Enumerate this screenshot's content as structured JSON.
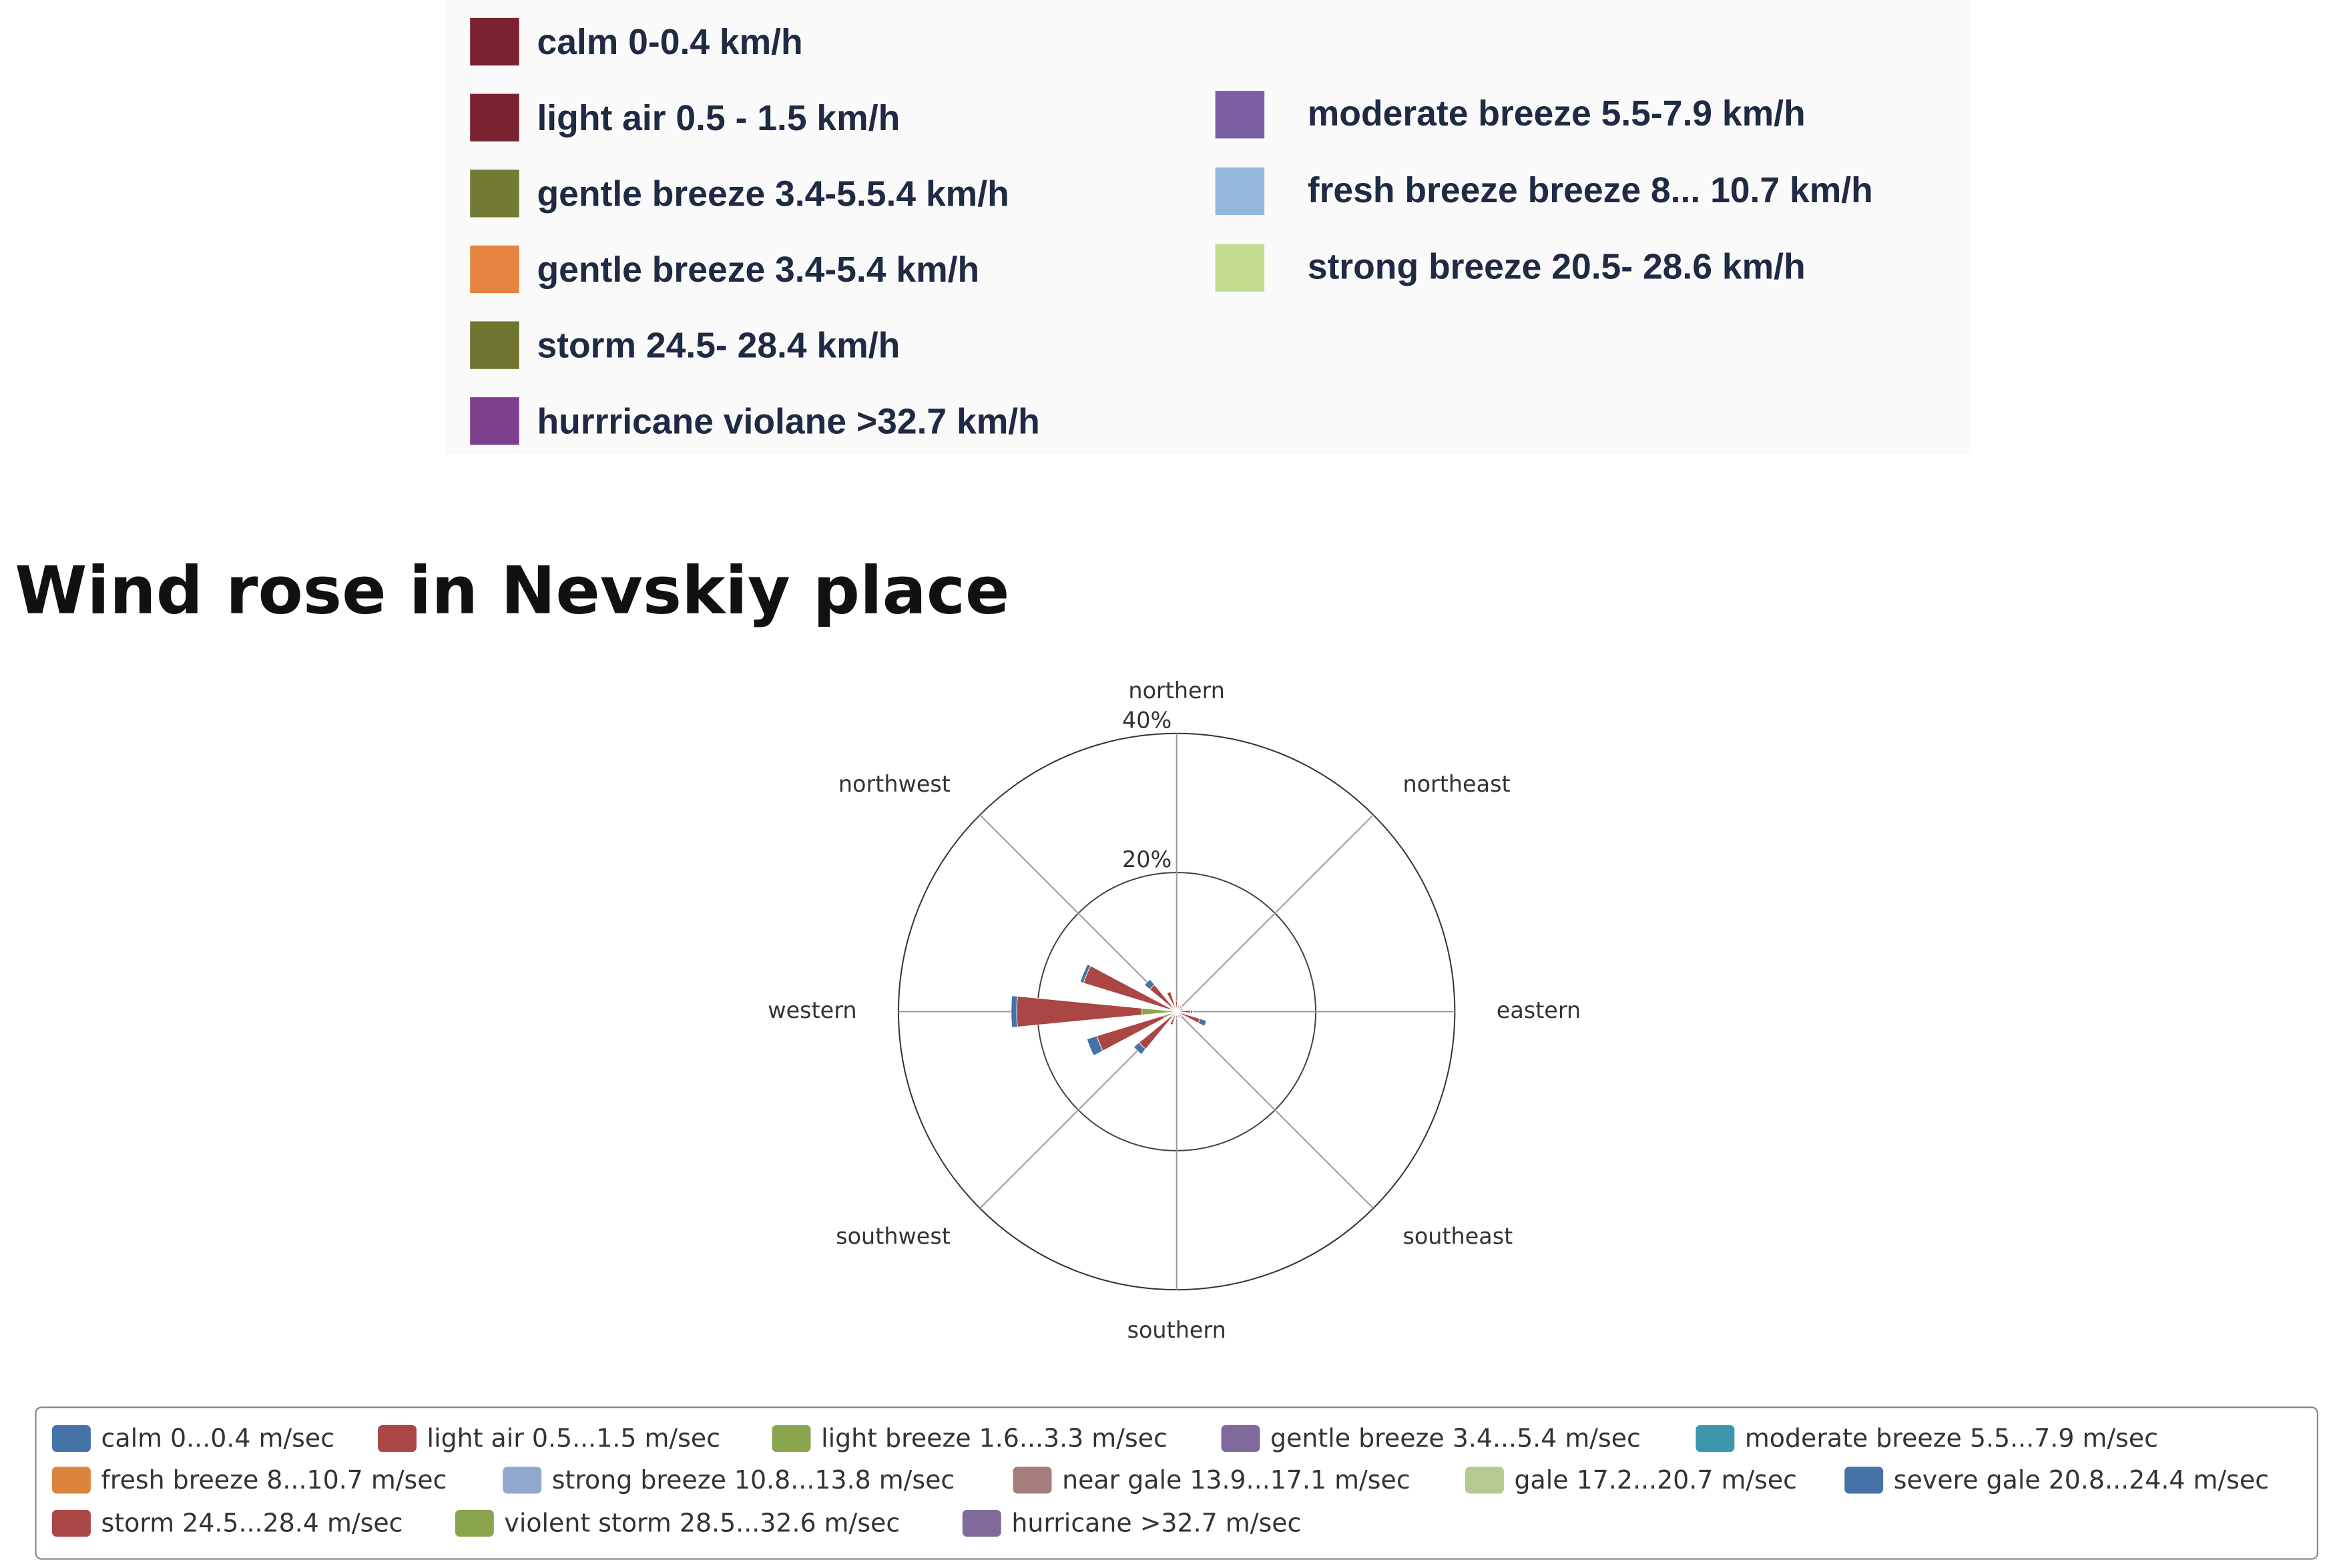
{
  "top_legend": {
    "left": [
      {
        "label": "calm 0-0.4 km/h",
        "color": "#7b2230"
      },
      {
        "label": "light air 0.5 - 1.5 km/h",
        "color": "#7b2230"
      },
      {
        "label": "gentle breeze 3.4-5.5.4 km/h",
        "color": "#737a33"
      },
      {
        "label": "gentle breeze 3.4-5.4 km/h",
        "color": "#e5843e"
      },
      {
        "label": "storm 24.5- 28.4 km/h",
        "color": "#6f7530"
      },
      {
        "label": "hurrricane violane >32.7 km/h",
        "color": "#7b3f8c"
      }
    ],
    "right": [
      {
        "label": "moderate breeze 5.5-7.9 km/h",
        "color": "#7d5fa6"
      },
      {
        "label": "fresh breeze breeze  8...  10.7 km/h",
        "color": "#93b8dc"
      },
      {
        "label": "strong  breeze  20.5- 28.6 km/h",
        "color": "#c3dc8e"
      }
    ]
  },
  "chart_data": {
    "type": "windrose",
    "title": "Wind rose in Nevskiy place",
    "categories": [
      "northern",
      null,
      "northeast",
      null,
      "eastern",
      null,
      "southeast",
      null,
      "southern",
      null,
      "southwest",
      null,
      "western",
      null,
      "northwest",
      null
    ],
    "ylim": [
      0,
      40
    ],
    "yticks": [
      {
        "value": 20,
        "label": "20%"
      },
      {
        "value": 40,
        "label": "40%"
      }
    ],
    "grid": true,
    "series": [
      {
        "name": "calm 0...0.4 m/sec",
        "color": "#4572a7",
        "values": [
          0,
          0,
          0,
          0,
          0.3,
          1,
          0,
          0,
          0,
          0,
          1,
          1.5,
          0.8,
          0.5,
          1,
          0
        ]
      },
      {
        "name": "light air 0.5...1.5 m/sec",
        "color": "#aa4643",
        "values": [
          1,
          0.5,
          0.5,
          0.5,
          1.5,
          3,
          0.5,
          0.5,
          0.5,
          1.5,
          6,
          10,
          18,
          13,
          4,
          2
        ]
      },
      {
        "name": "light breeze 1.6...3.3 m/sec",
        "color": "#89a54e",
        "values": [
          0.5,
          0.5,
          0.5,
          0.5,
          0.5,
          0.5,
          0.5,
          0.5,
          0.5,
          0.5,
          1,
          2,
          5,
          1,
          1,
          1
        ]
      },
      {
        "name": "gentle breeze 3.4...5.4 m/sec",
        "color": "#80699b",
        "values": [
          0,
          0,
          0,
          0,
          0,
          0,
          0,
          0,
          0,
          0,
          0,
          0,
          0,
          0,
          0,
          0
        ]
      },
      {
        "name": "moderate breeze 5.5...7.9 m/sec",
        "color": "#3d96ae",
        "values": [
          0,
          0,
          0,
          0,
          0,
          0,
          0,
          0,
          0,
          0,
          0,
          0,
          0,
          0,
          0,
          0
        ]
      },
      {
        "name": "fresh breeze 8...10.7 m/sec",
        "color": "#db843d",
        "values": [
          0,
          0,
          0,
          0,
          0,
          0,
          0,
          0,
          0,
          0,
          0,
          0,
          0,
          0,
          0,
          0
        ]
      },
      {
        "name": "strong breeze 10.8...13.8 m/sec",
        "color": "#92a8cd",
        "values": [
          0,
          0,
          0,
          0,
          0,
          0,
          0,
          0,
          0,
          0,
          0,
          0,
          0,
          0,
          0,
          0
        ]
      },
      {
        "name": "near gale 13.9...17.1 m/sec",
        "color": "#a47d7c",
        "values": [
          0,
          0,
          0,
          0,
          0,
          0,
          0,
          0,
          0,
          0,
          0,
          0,
          0,
          0,
          0,
          0
        ]
      },
      {
        "name": "gale 17.2...20.7 m/sec",
        "color": "#b5ca92",
        "values": [
          0,
          0,
          0,
          0,
          0,
          0,
          0,
          0,
          0,
          0,
          0,
          0,
          0,
          0,
          0,
          0
        ]
      },
      {
        "name": "severe gale 20.8...24.4 m/sec",
        "color": "#4572a7",
        "values": [
          0,
          0,
          0,
          0,
          0,
          0,
          0,
          0,
          0,
          0,
          0,
          0,
          0,
          0,
          0,
          0
        ]
      },
      {
        "name": "storm 24.5...28.4 m/sec",
        "color": "#aa4643",
        "values": [
          0,
          0,
          0,
          0,
          0,
          0,
          0,
          0,
          0,
          0,
          0,
          0,
          0,
          0,
          0,
          0
        ]
      },
      {
        "name": "violent storm 28.5...32.6 m/sec",
        "color": "#89a54e",
        "values": [
          0,
          0,
          0,
          0,
          0,
          0,
          0,
          0,
          0,
          0,
          0,
          0,
          0,
          0,
          0,
          0
        ]
      },
      {
        "name": "hurricane >32.7 m/sec",
        "color": "#80699b",
        "values": [
          0,
          0,
          0,
          0,
          0,
          0,
          0,
          0,
          0,
          0,
          0,
          0,
          0,
          0,
          0,
          0
        ]
      }
    ]
  }
}
